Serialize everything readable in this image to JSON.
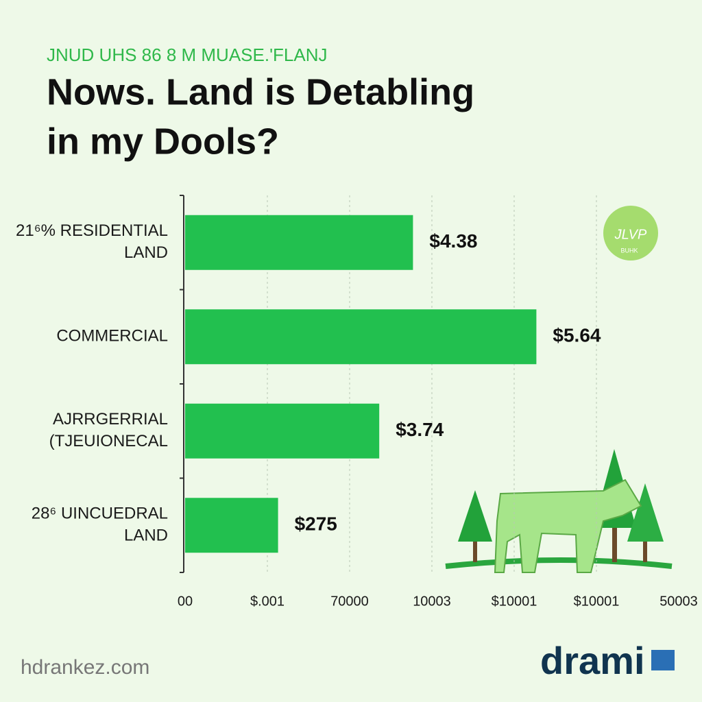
{
  "chart_data": {
    "type": "bar",
    "orientation": "horizontal",
    "subtitle": "JNUD UHS 86 8 M MUASE.'FLANJ",
    "title": [
      "Nows. Land is Detabling",
      "in  my Dools?"
    ],
    "categories": [
      [
        "21⁶% RESIDENTIAL",
        "LAND"
      ],
      [
        "COMMERCIAL"
      ],
      [
        "AJRRGERRIAL",
        "(TJEUIONEC​AL"
      ],
      [
        "28⁶ UINCUEDRAL",
        "LAND"
      ]
    ],
    "values": [
      2.77,
      4.27,
      2.36,
      1.13
    ],
    "annotations": [
      "$4.38",
      "$5.64",
      "$3.74",
      "$275"
    ],
    "color": "#22c04f",
    "xlim": [
      0,
      6
    ],
    "xticks": [
      {
        "value": 0,
        "label": "00"
      },
      {
        "value": 1,
        "label": "$.001"
      },
      {
        "value": 2,
        "label": "70000"
      },
      {
        "value": 3,
        "label": "10003"
      },
      {
        "value": 4,
        "label": "$10001"
      },
      {
        "value": 5,
        "label": "$10001"
      },
      {
        "value": 6,
        "label": "50003"
      }
    ],
    "grid": true,
    "badge": [
      "JLVP",
      "BUHK"
    ],
    "footer": "hdrankez.com",
    "logo": "drami"
  }
}
